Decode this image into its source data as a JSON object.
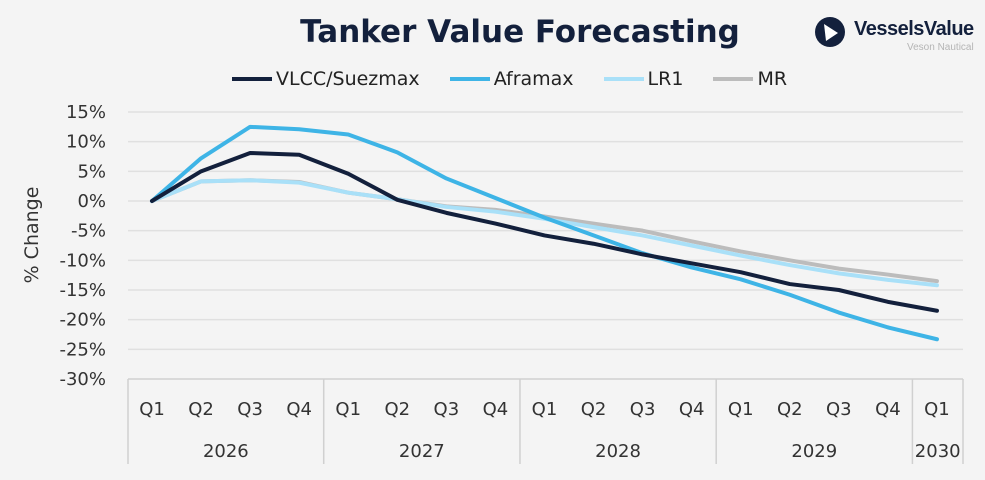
{
  "chart_data": {
    "type": "line",
    "title": "Tanker Value Forecasting",
    "ylabel": "% Change",
    "xlabel": "",
    "ylim": [
      -30,
      15
    ],
    "yticks": [
      "15%",
      "10%",
      "5%",
      "0%",
      "-5%",
      "-10%",
      "-15%",
      "-20%",
      "-25%",
      "-30%"
    ],
    "ytick_values": [
      15,
      10,
      5,
      0,
      -5,
      -10,
      -15,
      -20,
      -25,
      -30
    ],
    "grid": true,
    "legend": "top",
    "categories": [
      "Q1",
      "Q2",
      "Q3",
      "Q4",
      "Q1",
      "Q2",
      "Q3",
      "Q4",
      "Q1",
      "Q2",
      "Q3",
      "Q4",
      "Q1",
      "Q2",
      "Q3",
      "Q4",
      "Q1"
    ],
    "years": [
      {
        "label": "2026",
        "quarters": 4
      },
      {
        "label": "2027",
        "quarters": 4
      },
      {
        "label": "2028",
        "quarters": 4
      },
      {
        "label": "2029",
        "quarters": 4
      },
      {
        "label": "2030",
        "quarters": 1
      }
    ],
    "series": [
      {
        "name": "VLCC/Suezmax",
        "color": "#13203c",
        "values": [
          0,
          5,
          8.1,
          7.8,
          4.6,
          0.2,
          -2,
          -3.8,
          -5.8,
          -7.2,
          -9,
          -10.5,
          -12,
          -14,
          -15,
          -17,
          -18.5
        ]
      },
      {
        "name": "Aframax",
        "color": "#3eb4e6",
        "values": [
          0,
          7.2,
          12.5,
          12.1,
          11.2,
          8.2,
          3.8,
          0.5,
          -2.8,
          -5.8,
          -8.8,
          -11.2,
          -13.2,
          -15.8,
          -18.8,
          -21.3,
          -23.3
        ]
      },
      {
        "name": "LR1",
        "color": "#a9e0f8",
        "values": [
          0,
          3.3,
          3.5,
          3.1,
          1.4,
          0.3,
          -1,
          -1.8,
          -3,
          -4.4,
          -5.8,
          -7.5,
          -9.2,
          -10.8,
          -12.2,
          -13.3,
          -14.2
        ]
      },
      {
        "name": "MR",
        "color": "#bcbcbc",
        "values": [
          0,
          3.3,
          3.5,
          3.2,
          1.4,
          0.3,
          -0.9,
          -1.5,
          -2.6,
          -3.8,
          -5,
          -6.8,
          -8.5,
          -10,
          -11.4,
          -12.4,
          -13.5
        ]
      }
    ]
  },
  "logo": {
    "brand": "VesselsValue",
    "sub": "Veson Nautical"
  }
}
